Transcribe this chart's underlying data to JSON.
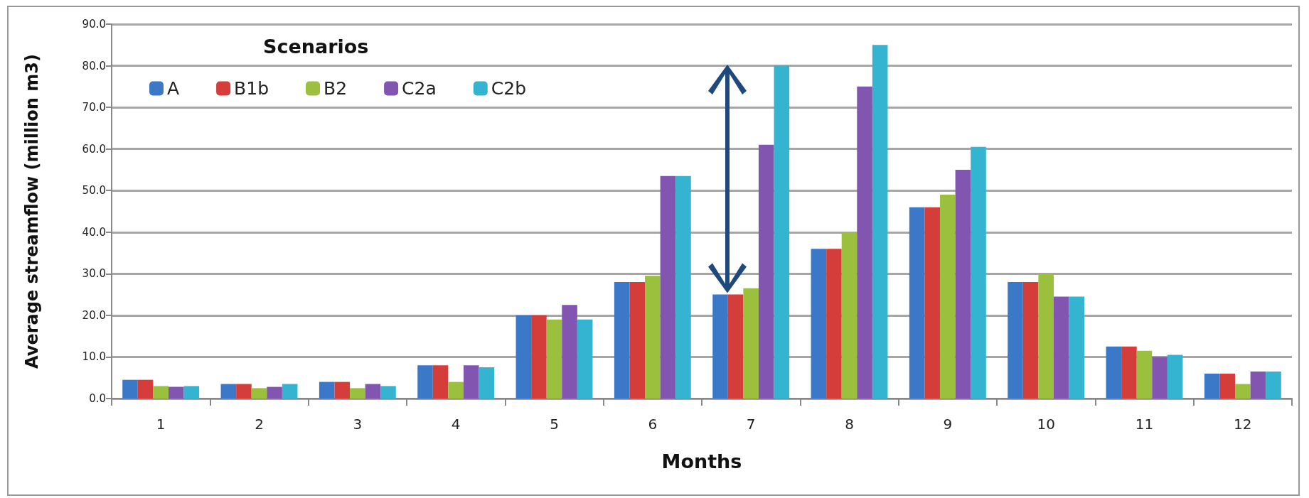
{
  "chart_data": {
    "type": "bar",
    "xlabel": "Months",
    "ylabel": "Average streamflow (million m3)",
    "legend_title": "Scenarios",
    "legend": "top left",
    "grid": "y",
    "categories": [
      "1",
      "2",
      "3",
      "4",
      "5",
      "6",
      "7",
      "8",
      "9",
      "10",
      "11",
      "12"
    ],
    "ylim": [
      0,
      90
    ],
    "yticks": [
      {
        "value": 0,
        "label": "0.0"
      },
      {
        "value": 10,
        "label": "10.0"
      },
      {
        "value": 20,
        "label": "20.0"
      },
      {
        "value": 30,
        "label": "30.0"
      },
      {
        "value": 40,
        "label": "40.0"
      },
      {
        "value": 50,
        "label": "50.0"
      },
      {
        "value": 60,
        "label": "60.0"
      },
      {
        "value": 70,
        "label": "70.0"
      },
      {
        "value": 80,
        "label": "80.0"
      },
      {
        "value": 90,
        "label": "90.0"
      }
    ],
    "series": [
      {
        "name": "A",
        "color": "#3b78c8",
        "values": [
          4.5,
          3.5,
          4,
          8,
          20,
          28,
          25,
          36,
          46,
          28,
          12.5,
          6
        ]
      },
      {
        "name": "B1b",
        "color": "#d43d3a",
        "values": [
          4.5,
          3.5,
          4,
          8,
          20,
          28,
          25,
          36,
          46,
          28,
          12.5,
          6
        ]
      },
      {
        "name": "B2",
        "color": "#9bc03e",
        "values": [
          3,
          2.5,
          2.5,
          4,
          19,
          29.5,
          26.5,
          40,
          49,
          30,
          11.5,
          3.5
        ]
      },
      {
        "name": "C2a",
        "color": "#8256b0",
        "values": [
          2.8,
          2.8,
          3.5,
          8,
          22.5,
          53.5,
          61,
          75,
          55,
          24.5,
          10,
          6.5
        ]
      },
      {
        "name": "C2b",
        "color": "#34b4d0",
        "values": [
          3,
          3.5,
          3,
          7.5,
          19,
          53.5,
          80,
          85,
          60.5,
          24.5,
          10.5,
          6.5
        ]
      }
    ]
  }
}
